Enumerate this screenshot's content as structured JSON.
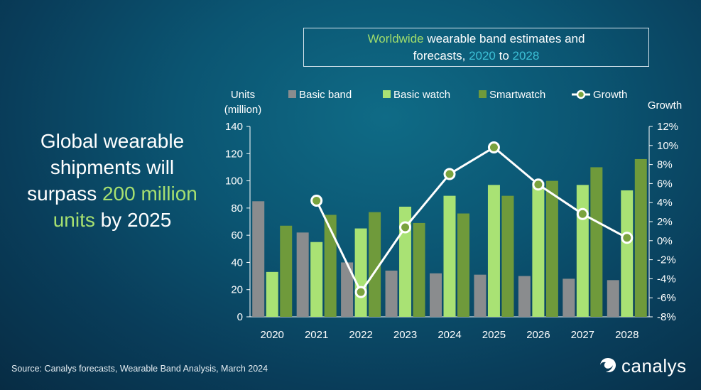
{
  "title": {
    "part1": "Worldwide",
    "part2": " wearable band estimates and",
    "part3": "forecasts, ",
    "part4": "2020",
    "part5": " to ",
    "part6": "2028"
  },
  "headline": {
    "line1": "Global wearable",
    "line2": "shipments will",
    "line3a": "surpass ",
    "line3b": "200 million",
    "line4a": "units",
    "line4b": " by 2025"
  },
  "source": "Source:  Canalys forecasts, Wearable Band Analysis, March 2024",
  "logo": {
    "icon": "canalys-swirl-icon",
    "text": "canalys"
  },
  "colors": {
    "basic_band": "#8a8c8e",
    "basic_watch": "#a9e274",
    "smartwatch": "#6f9a3b",
    "growth": "#ffffff",
    "growth_marker": "#7aa33e"
  },
  "chart_data": {
    "type": "bar",
    "title": "Worldwide wearable band estimates and forecasts, 2020 to 2028",
    "ylabel_left": "Units (million)",
    "ylabel_right": "Growth",
    "categories": [
      "2020",
      "2021",
      "2022",
      "2023",
      "2024",
      "2025",
      "2026",
      "2027",
      "2028"
    ],
    "ylim": [
      0,
      140
    ],
    "y_ticks": [
      0,
      20,
      40,
      60,
      80,
      100,
      120,
      140
    ],
    "y2lim": [
      -8,
      12
    ],
    "y2_ticks": [
      -8,
      -6,
      -4,
      -2,
      0,
      2,
      4,
      6,
      8,
      10,
      12
    ],
    "y2_tick_labels": [
      "-8%",
      "-6%",
      "-4%",
      "-2%",
      "0%",
      "2%",
      "4%",
      "6%",
      "8%",
      "10%",
      "12%"
    ],
    "series": [
      {
        "name": "Basic band",
        "type": "bar",
        "values": [
          85,
          62,
          40,
          34,
          32,
          31,
          30,
          28,
          27
        ]
      },
      {
        "name": "Basic watch",
        "type": "bar",
        "values": [
          33,
          55,
          65,
          81,
          89,
          97,
          99,
          97,
          93
        ]
      },
      {
        "name": "Smartwatch",
        "type": "bar",
        "values": [
          67,
          75,
          77,
          69,
          76,
          89,
          100,
          110,
          116
        ]
      },
      {
        "name": "Growth",
        "type": "line",
        "axis": "right",
        "values": [
          null,
          4.2,
          -5.4,
          1.4,
          7.0,
          9.8,
          5.9,
          2.8,
          0.3
        ]
      }
    ],
    "legend_position": "top",
    "grid": false
  }
}
